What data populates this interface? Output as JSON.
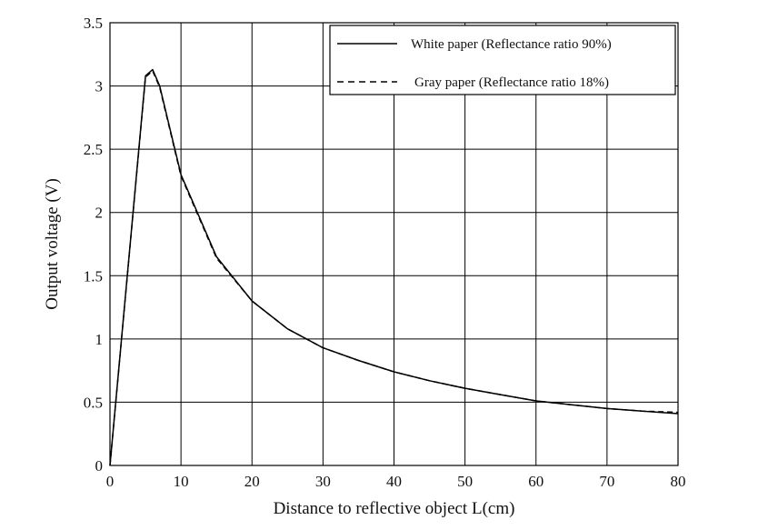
{
  "chart_data": {
    "type": "line",
    "title": "",
    "xlabel": "Distance to reflective object L(cm)",
    "ylabel": "Output voltage (V)",
    "xlim": [
      0,
      80
    ],
    "ylim": [
      0,
      3.5
    ],
    "x_ticks": [
      "0",
      "10",
      "20",
      "30",
      "40",
      "50",
      "60",
      "70",
      "80"
    ],
    "y_ticks": [
      "0",
      "0.5",
      "1",
      "1.5",
      "2",
      "2.5",
      "3",
      "3.5"
    ],
    "grid": true,
    "legend_position": "top-right",
    "series": [
      {
        "name": "White paper (Reflectance ratio 90%)",
        "line_style": "solid",
        "color": "#000000",
        "x": [
          0,
          5,
          6,
          7,
          10,
          15,
          20,
          25,
          30,
          35,
          40,
          45,
          50,
          55,
          60,
          65,
          70,
          75,
          80
        ],
        "y": [
          0.0,
          3.08,
          3.13,
          3.0,
          2.3,
          1.65,
          1.3,
          1.08,
          0.93,
          0.83,
          0.74,
          0.67,
          0.61,
          0.56,
          0.51,
          0.48,
          0.45,
          0.43,
          0.41
        ]
      },
      {
        "name": "Gray paper (Reflectance ratio 18%)",
        "line_style": "dashed",
        "color": "#000000",
        "x": [
          0,
          5,
          6,
          7,
          10,
          15,
          20,
          25,
          30,
          35,
          40,
          45,
          50,
          55,
          60,
          65,
          70,
          75,
          80
        ],
        "y": [
          0.0,
          3.07,
          3.12,
          2.99,
          2.29,
          1.64,
          1.3,
          1.08,
          0.93,
          0.83,
          0.74,
          0.67,
          0.61,
          0.56,
          0.51,
          0.48,
          0.45,
          0.43,
          0.42
        ]
      }
    ]
  }
}
